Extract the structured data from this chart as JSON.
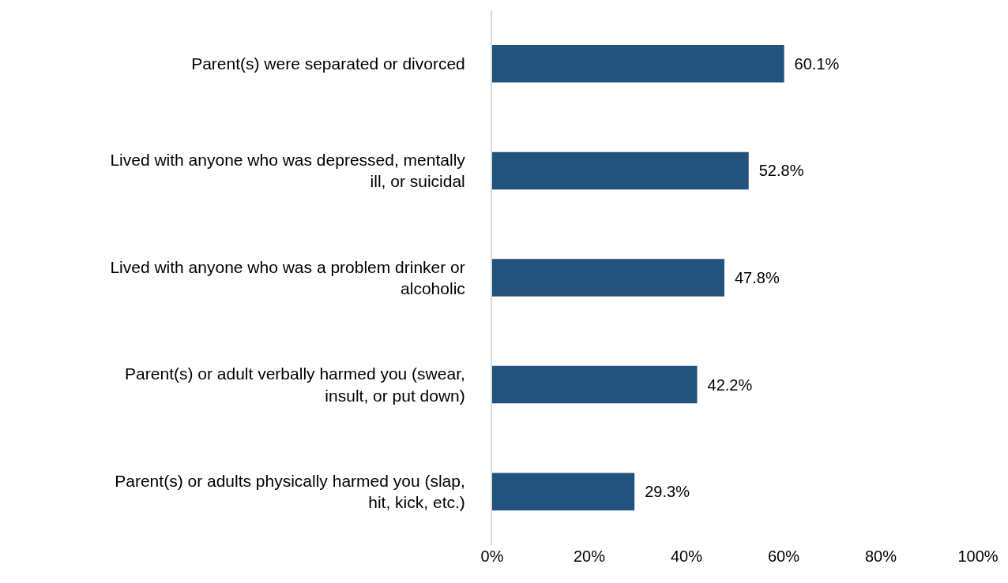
{
  "chart_data": {
    "type": "bar",
    "orientation": "horizontal",
    "categories": [
      "Parent(s) were separated or divorced",
      "Lived with anyone who was depressed, mentally ill, or suicidal",
      "Lived with anyone who was a problem drinker or alcoholic",
      "Parent(s) or adult verbally harmed you (swear, insult, or put down)",
      "Parent(s) or adults physically harmed you (slap, hit, kick, etc.)"
    ],
    "values": [
      60.1,
      52.8,
      47.8,
      42.2,
      29.3
    ],
    "value_labels": [
      "60.1%",
      "52.8%",
      "47.8%",
      "42.2%",
      "29.3%"
    ],
    "color": "#23527c",
    "xlim": [
      0,
      100
    ],
    "xticks": [
      {
        "value": 0,
        "label": "0%"
      },
      {
        "value": 20,
        "label": "20%"
      },
      {
        "value": 40,
        "label": "40%"
      },
      {
        "value": 60,
        "label": "60%"
      },
      {
        "value": 80,
        "label": "80%"
      },
      {
        "value": 100,
        "label": "100%"
      }
    ],
    "grid": false
  }
}
